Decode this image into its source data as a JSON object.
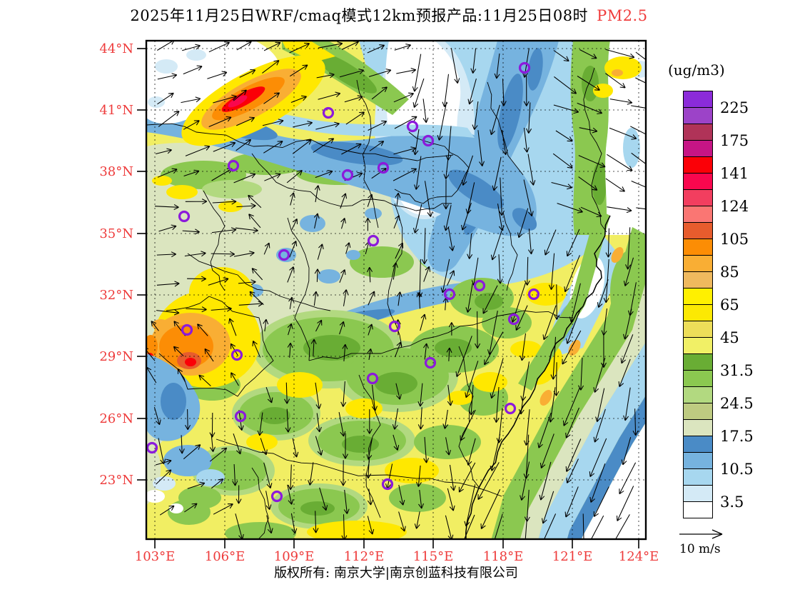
{
  "title": {
    "text": "2025年11月25日WRF/cmaq模式12km预报产品:11月25日08时",
    "pollutant": "PM2.5"
  },
  "colorbar": {
    "unit": "(ug/m3)",
    "labels": [
      "225",
      "175",
      "141",
      "124",
      "105",
      "85",
      "65",
      "45",
      "31.5",
      "24.5",
      "17.5",
      "10.5",
      "3.5"
    ],
    "segments": [
      "#8B2BD9",
      "#9C43C8",
      "#B03358",
      "#C61585",
      "#FB0007",
      "#F9074E",
      "#F23E5F",
      "#FA7673",
      "#E75C2D",
      "#FC8D05",
      "#F9AE34",
      "#EFB95E",
      "#FFF000",
      "#FCE903",
      "#EDDE59",
      "#F1F066",
      "#69AD34",
      "#8BC850",
      "#B2D980",
      "#BECB81",
      "#DBE5BF",
      "#4A8BC6",
      "#76B3DF",
      "#A7D7EF",
      "#D4EAF6",
      "#FFFFFF"
    ]
  },
  "axes": {
    "lat_labels": [
      "44°N",
      "41°N",
      "38°N",
      "35°N",
      "32°N",
      "29°N",
      "26°N",
      "23°N"
    ],
    "lon_labels": [
      "103°E",
      "106°E",
      "109°E",
      "112°E",
      "115°E",
      "118°E",
      "121°E",
      "124°E"
    ]
  },
  "wind_legend": {
    "label": "10 m/s"
  },
  "footer": {
    "text": "版权所有: 南京大学|南京创蓝科技有限公司"
  },
  "colors": {
    "axis_label": "#ee3b3b",
    "title_highlight": "#f03c3c",
    "marker": "#8b1adb"
  }
}
